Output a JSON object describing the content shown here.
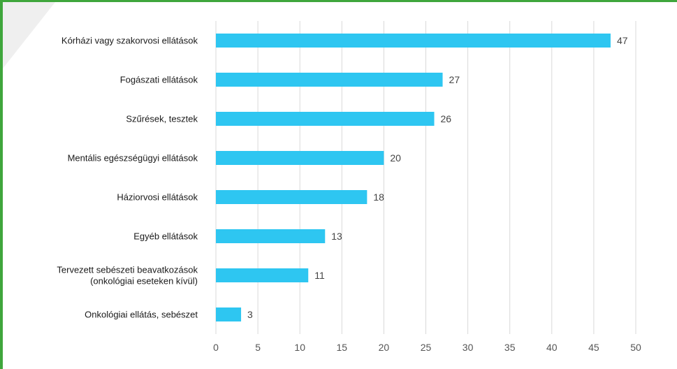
{
  "colors": {
    "bar": "#2ec6f1",
    "frame": "#3fa63c",
    "grid": "#d9d9d9",
    "decor": "#efefef"
  },
  "chart_data": {
    "type": "bar",
    "orientation": "horizontal",
    "categories": [
      [
        "Kórházi vagy szakorvosi ellátások"
      ],
      [
        "Fogászati ellátások"
      ],
      [
        "Szűrések, tesztek"
      ],
      [
        "Mentális egészségügyi ellátások"
      ],
      [
        "Háziorvosi ellátások"
      ],
      [
        "Egyéb ellátások"
      ],
      [
        "Tervezett sebészeti beavatkozások",
        "(onkológiai eseteken kívül)"
      ],
      [
        "Onkológiai ellátás, sebészet"
      ]
    ],
    "values": [
      47,
      27,
      26,
      20,
      18,
      13,
      11,
      3
    ],
    "xlim": [
      0,
      50
    ],
    "xticks": [
      "0",
      "5",
      "10",
      "15",
      "20",
      "25",
      "30",
      "35",
      "40",
      "45",
      "50"
    ],
    "grid": "vertical",
    "data_labels": true
  }
}
